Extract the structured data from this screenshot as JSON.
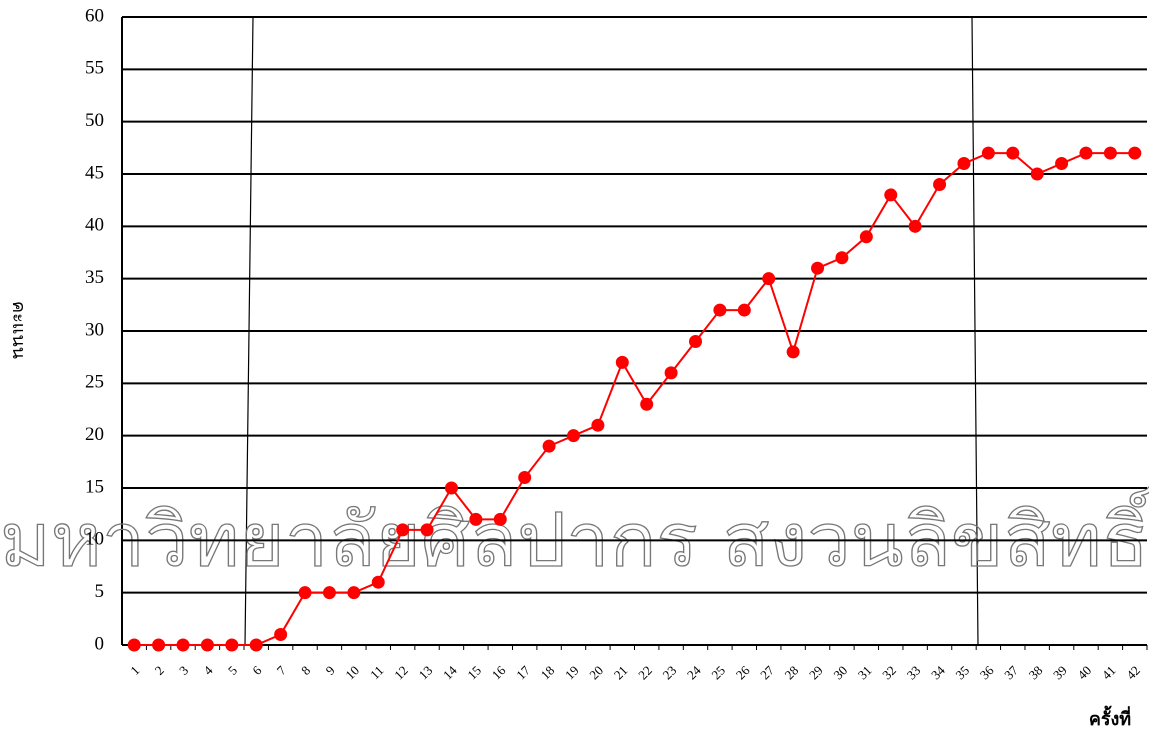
{
  "chart_data": {
    "type": "line",
    "watermark": "มหาวิทยาลัยศิลปากร สงวนลิขสิทธิ์",
    "y_label": "คะแนน",
    "x_label": "ครั้งที่",
    "categories": [
      "1",
      "2",
      "3",
      "4",
      "5",
      "6",
      "7",
      "8",
      "9",
      "10",
      "11",
      "12",
      "13",
      "14",
      "15",
      "16",
      "17",
      "18",
      "19",
      "20",
      "21",
      "22",
      "23",
      "24",
      "25",
      "26",
      "27",
      "28",
      "29",
      "30",
      "31",
      "32",
      "33",
      "34",
      "35",
      "36",
      "37",
      "38",
      "39",
      "40",
      "41",
      "42"
    ],
    "values": [
      0,
      0,
      0,
      0,
      0,
      0,
      1,
      5,
      5,
      5,
      6,
      11,
      11,
      15,
      12,
      12,
      16,
      19,
      20,
      21,
      27,
      23,
      26,
      29,
      32,
      32,
      35,
      28,
      36,
      37,
      39,
      43,
      40,
      44,
      46,
      47,
      47,
      45,
      46,
      47,
      47,
      47
    ],
    "color": "#ff0000",
    "ylim": [
      0,
      60
    ],
    "yticks": [
      0,
      5,
      10,
      15,
      20,
      25,
      30,
      35,
      40,
      45,
      50,
      55,
      60
    ],
    "grid": true
  }
}
